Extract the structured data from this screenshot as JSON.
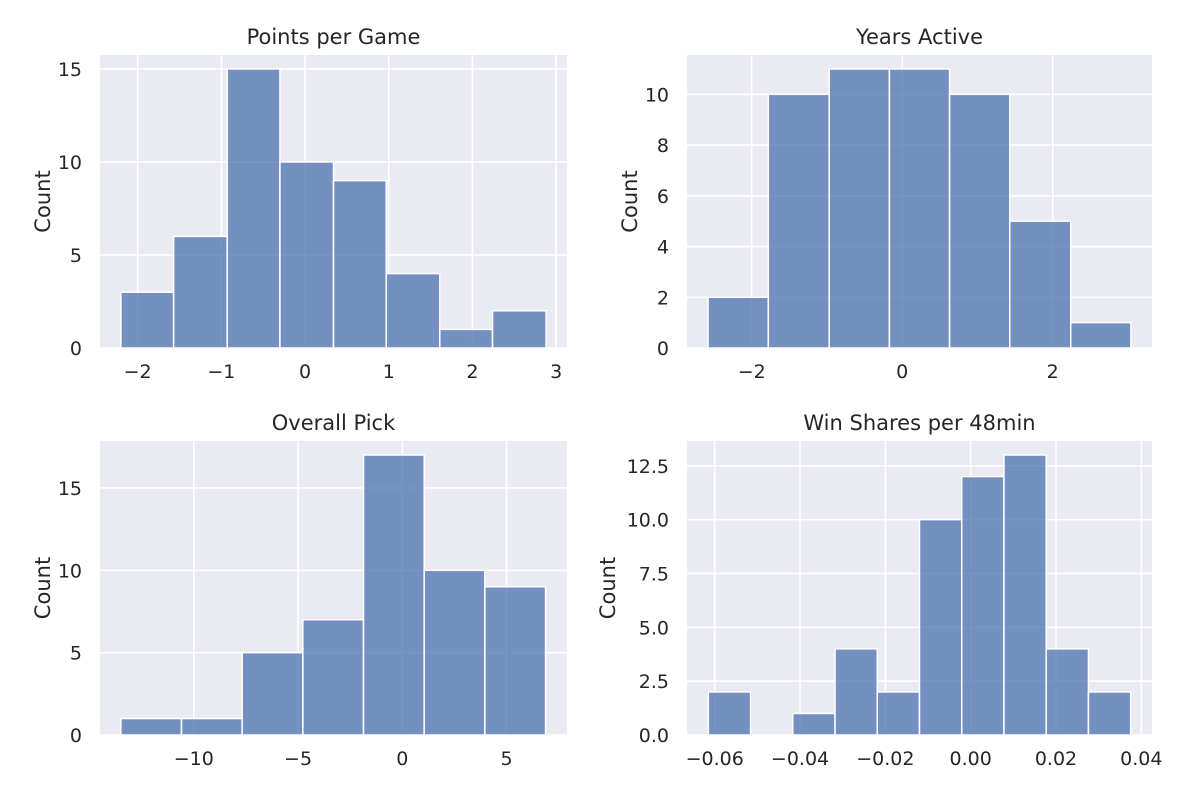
{
  "chart_data": [
    {
      "type": "bar",
      "title": "Points per Game",
      "xlabel": "",
      "ylabel": "Count",
      "bin_edges": [
        -2.2,
        -1.57,
        -0.93,
        -0.3,
        0.34,
        0.97,
        1.61,
        2.24,
        2.88
      ],
      "values": [
        3,
        6,
        15,
        10,
        9,
        4,
        1,
        2
      ],
      "xlim": [
        -2.45,
        3.13
      ],
      "ylim": [
        0,
        15.75
      ],
      "xticks": [
        -2,
        -1,
        0,
        1,
        2,
        3
      ],
      "xtick_labels": [
        "−2",
        "−1",
        "0",
        "1",
        "2",
        "3"
      ],
      "yticks": [
        0,
        5,
        10,
        15
      ],
      "ytick_labels": [
        "0",
        "5",
        "10",
        "15"
      ],
      "grid": true
    },
    {
      "type": "bar",
      "title": "Years Active",
      "xlabel": "",
      "ylabel": "Count",
      "bin_edges": [
        -2.58,
        -1.78,
        -0.97,
        -0.17,
        0.63,
        1.43,
        2.24,
        3.04
      ],
      "values": [
        2,
        10,
        11,
        11,
        10,
        5,
        1
      ],
      "xlim": [
        -2.86,
        3.32
      ],
      "ylim": [
        0,
        11.55
      ],
      "xticks": [
        -2,
        0,
        2
      ],
      "xtick_labels": [
        "−2",
        "0",
        "2"
      ],
      "yticks": [
        0,
        2,
        4,
        6,
        8,
        10
      ],
      "ytick_labels": [
        "0",
        "2",
        "4",
        "6",
        "8",
        "10"
      ],
      "grid": true
    },
    {
      "type": "bar",
      "title": "Overall Pick",
      "xlabel": "",
      "ylabel": "Count",
      "bin_edges": [
        -13.5,
        -10.59,
        -7.68,
        -4.77,
        -1.86,
        1.05,
        3.96,
        6.87
      ],
      "values": [
        1,
        1,
        5,
        7,
        17,
        10,
        9
      ],
      "xlim": [
        -14.5,
        7.9
      ],
      "ylim": [
        0,
        17.85
      ],
      "xticks": [
        -10,
        -5,
        0,
        5
      ],
      "xtick_labels": [
        "−10",
        "−5",
        "0",
        "5"
      ],
      "yticks": [
        0,
        5,
        10,
        15
      ],
      "ytick_labels": [
        "0",
        "5",
        "10",
        "15"
      ],
      "grid": true
    },
    {
      "type": "bar",
      "title": "Win Shares per 48min",
      "xlabel": "",
      "ylabel": "Count",
      "bin_edges": [
        -0.0615,
        -0.0516,
        -0.0417,
        -0.0318,
        -0.0219,
        -0.012,
        -0.0021,
        0.0078,
        0.0177,
        0.0276,
        0.0375
      ],
      "values": [
        2,
        0,
        1,
        4,
        2,
        10,
        12,
        13,
        4,
        2
      ],
      "xlim": [
        -0.0665,
        0.0425
      ],
      "ylim": [
        0,
        13.65
      ],
      "xticks": [
        -0.06,
        -0.04,
        -0.02,
        0.0,
        0.02,
        0.04
      ],
      "xtick_labels": [
        "−0.06",
        "−0.04",
        "−0.02",
        "0.00",
        "0.02",
        "0.04"
      ],
      "yticks": [
        0,
        2.5,
        5,
        7.5,
        10,
        12.5
      ],
      "ytick_labels": [
        "0.0",
        "2.5",
        "5.0",
        "7.5",
        "10.0",
        "12.5"
      ],
      "grid": true
    }
  ]
}
